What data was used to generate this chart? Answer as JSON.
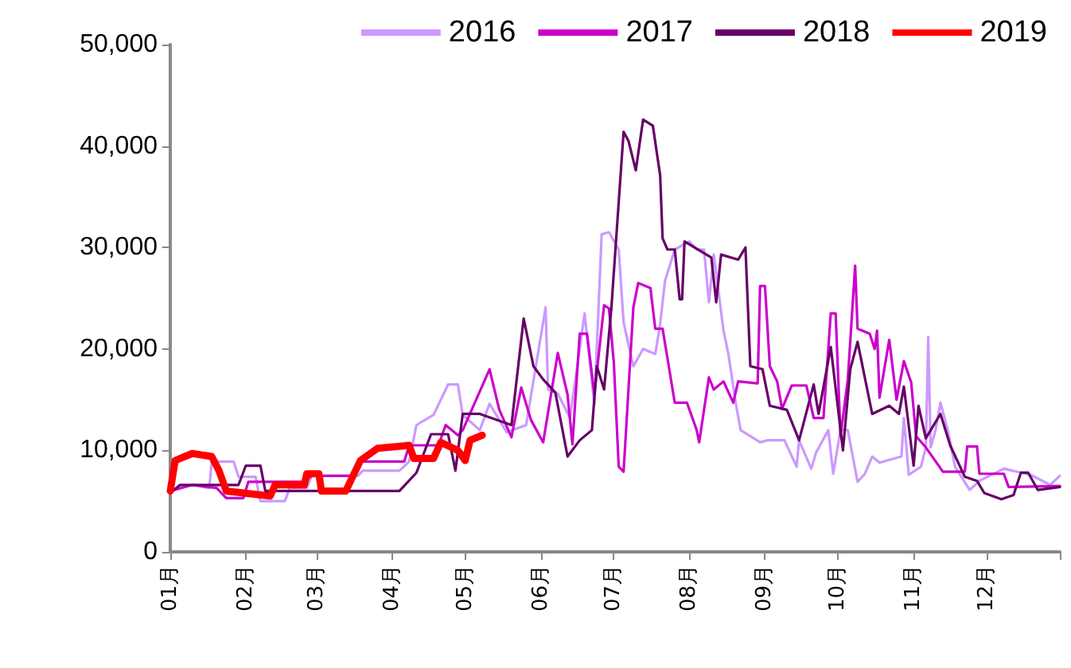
{
  "chart_data": {
    "type": "line",
    "legend": "top",
    "marker": "none",
    "line_style": "solid",
    "grid": false,
    "xlim": [
      "--01-01",
      "--12-31"
    ],
    "xticks": [
      {
        "value": "--01-01",
        "label": "01月"
      },
      {
        "value": "--02-01",
        "label": "02月"
      },
      {
        "value": "--03-01",
        "label": "03月"
      },
      {
        "value": "--04-01",
        "label": "04月"
      },
      {
        "value": "--05-01",
        "label": "05月"
      },
      {
        "value": "--06-01",
        "label": "06月"
      },
      {
        "value": "--07-01",
        "label": "07月"
      },
      {
        "value": "--08-01",
        "label": "08月"
      },
      {
        "value": "--09-01",
        "label": "09月"
      },
      {
        "value": "--10-01",
        "label": "10月"
      },
      {
        "value": "--11-01",
        "label": "11月"
      },
      {
        "value": "--12-01",
        "label": "12月"
      },
      {
        "value": "--12-31",
        "label": null
      }
    ],
    "ylim": [
      0,
      50000
    ],
    "yticks": [
      0,
      {
        "value": 10000,
        "label": "10,000"
      },
      {
        "value": 20000,
        "label": "20,000"
      },
      {
        "value": 30000,
        "label": "30,000"
      },
      {
        "value": 40000,
        "label": "40,000"
      },
      {
        "value": 50000,
        "label": "50,000"
      }
    ],
    "series": [
      {
        "name": "2016",
        "color": "#cc99ff",
        "x": [
          "--01-01",
          "--01-10",
          "--01-17",
          "--01-18",
          "--01-27",
          "--01-29",
          "--02-05",
          "--02-07",
          "--02-17",
          "--02-19",
          "--02-26",
          "--02-28",
          "--03-18",
          "--03-20",
          "--04-04",
          "--04-08",
          "--04-11",
          "--04-18",
          "--04-24",
          "--04-28",
          "--04-30",
          "--05-07",
          "--05-11",
          "--05-18",
          "--05-26",
          "--06-03",
          "--06-04",
          "--06-08",
          "--06-13",
          "--06-19",
          "--06-23",
          "--06-26",
          "--06-29",
          "--07-03",
          "--07-05",
          "--07-09",
          "--07-13",
          "--07-18",
          "--07-20",
          "--07-22",
          "--07-26",
          "--08-01",
          "--08-04",
          "--08-07",
          "--08-09",
          "--08-11",
          "--08-15",
          "--08-17",
          "--08-20",
          "--08-22",
          "--08-30",
          "--09-02",
          "--09-09",
          "--09-14",
          "--09-15",
          "--09-20",
          "--09-22",
          "--09-27",
          "--09-29",
          "--10-02",
          "--10-05",
          "--10-09",
          "--10-12",
          "--10-15",
          "--10-18",
          "--10-27",
          "--10-28",
          "--10-30",
          "--11-04",
          "--11-06",
          "--11-07",
          "--11-08",
          "--11-10",
          "--11-12",
          "--11-15",
          "--11-18",
          "--11-24",
          "--11-28",
          "--12-08",
          "--12-19",
          "--12-27",
          "--12-31"
        ],
        "values": [
          6000,
          6600,
          6300,
          8900,
          8900,
          7400,
          7400,
          5000,
          5000,
          6300,
          6300,
          7500,
          7500,
          8000,
          8000,
          8900,
          12500,
          13500,
          16500,
          16500,
          13500,
          12000,
          14600,
          11800,
          12500,
          24100,
          16000,
          15600,
          13200,
          23500,
          14500,
          31300,
          31500,
          29800,
          22600,
          18300,
          20000,
          19500,
          22500,
          26700,
          29800,
          30600,
          29800,
          29800,
          24600,
          29300,
          21800,
          19500,
          14700,
          12000,
          10800,
          11000,
          11000,
          8400,
          11000,
          8200,
          9800,
          12000,
          7700,
          12000,
          12000,
          6900,
          7700,
          9400,
          8800,
          9400,
          13200,
          7600,
          8400,
          10300,
          21200,
          10300,
          12000,
          14700,
          12000,
          8400,
          6100,
          7000,
          8200,
          7600,
          6600,
          7500
        ]
      },
      {
        "name": "2017",
        "color": "#cc00cc",
        "x": [
          "--01-01",
          "--01-10",
          "--01-20",
          "--01-24",
          "--01-31",
          "--02-02",
          "--02-25",
          "--02-28",
          "--03-16",
          "--03-18",
          "--04-06",
          "--04-08",
          "--04-20",
          "--04-23",
          "--04-28",
          "--04-30",
          "--05-11",
          "--05-15",
          "--05-20",
          "--05-24",
          "--05-28",
          "--06-02",
          "--06-08",
          "--06-12",
          "--06-14",
          "--06-17",
          "--06-20",
          "--06-23",
          "--06-27",
          "--06-29",
          "--07-01",
          "--07-03",
          "--07-05",
          "--07-09",
          "--07-11",
          "--07-16",
          "--07-18",
          "--07-21",
          "--07-26",
          "--07-31",
          "--08-04",
          "--08-05",
          "--08-09",
          "--08-11",
          "--08-15",
          "--08-19",
          "--08-21",
          "--08-29",
          "--08-30",
          "--09-01",
          "--09-03",
          "--09-06",
          "--09-08",
          "--09-12",
          "--09-18",
          "--09-21",
          "--09-25",
          "--09-28",
          "--09-30",
          "--10-02",
          "--10-05",
          "--10-08",
          "--10-09",
          "--10-14",
          "--10-16",
          "--10-17",
          "--10-18",
          "--10-22",
          "--10-25",
          "--10-28",
          "--10-31",
          "--11-02",
          "--11-06",
          "--11-13",
          "--11-22",
          "--11-23",
          "--11-27",
          "--11-28",
          "--12-08",
          "--12-10",
          "--12-31"
        ],
        "values": [
          6000,
          6600,
          6300,
          5300,
          5300,
          6900,
          6900,
          7500,
          7500,
          8900,
          8900,
          10500,
          10500,
          12500,
          11500,
          12000,
          18000,
          14000,
          11300,
          16200,
          13000,
          10800,
          19600,
          15500,
          10600,
          21500,
          21500,
          15500,
          24300,
          24000,
          18600,
          8400,
          7900,
          24100,
          26500,
          26000,
          22000,
          22000,
          14700,
          14700,
          12000,
          10800,
          17200,
          16000,
          16800,
          14700,
          16800,
          16600,
          26200,
          26200,
          18300,
          16800,
          14100,
          16400,
          16400,
          13200,
          13200,
          23500,
          23500,
          11400,
          17000,
          28200,
          22000,
          21500,
          20000,
          21800,
          15200,
          20900,
          15000,
          18800,
          16700,
          11400,
          10300,
          7900,
          7900,
          10400,
          10400,
          7700,
          7700,
          6400,
          6500
        ]
      },
      {
        "name": "2018",
        "color": "#660066",
        "x": [
          "--01-01",
          "--01-05",
          "--01-29",
          "--02-01",
          "--02-07",
          "--02-09",
          "--04-04",
          "--04-11",
          "--04-17",
          "--04-24",
          "--04-27",
          "--04-30",
          "--05-07",
          "--05-20",
          "--05-25",
          "--05-29",
          "--06-02",
          "--06-07",
          "--06-12",
          "--06-17",
          "--06-22",
          "--06-24",
          "--06-27",
          "--06-30",
          "--07-05",
          "--07-07",
          "--07-10",
          "--07-13",
          "--07-17",
          "--07-20",
          "--07-21",
          "--07-23",
          "--07-26",
          "--07-28",
          "--07-29",
          "--07-30",
          "--08-10",
          "--08-12",
          "--08-14",
          "--08-21",
          "--08-24",
          "--08-26",
          "--08-31",
          "--09-03",
          "--09-10",
          "--09-15",
          "--09-21",
          "--09-23",
          "--09-28",
          "--10-03",
          "--10-06",
          "--10-09",
          "--10-15",
          "--10-22",
          "--10-26",
          "--10-28",
          "--11-01",
          "--11-03",
          "--11-06",
          "--11-12",
          "--11-16",
          "--11-22",
          "--11-27",
          "--11-30",
          "--12-07",
          "--12-12",
          "--12-15",
          "--12-18",
          "--12-22",
          "--12-31"
        ],
        "values": [
          5800,
          6600,
          6600,
          8500,
          8500,
          6000,
          6000,
          7800,
          11600,
          11600,
          8000,
          13600,
          13600,
          12500,
          23000,
          18300,
          17000,
          15700,
          9400,
          11000,
          12000,
          18300,
          16000,
          24100,
          41400,
          40500,
          37600,
          42600,
          42000,
          37100,
          30900,
          29800,
          29800,
          24900,
          24900,
          30600,
          29000,
          24600,
          29300,
          28800,
          30000,
          18300,
          18000,
          14400,
          14000,
          11000,
          16500,
          13600,
          20200,
          10000,
          18000,
          20700,
          13600,
          14400,
          13600,
          16300,
          8500,
          14400,
          11200,
          13600,
          10500,
          7400,
          7000,
          5800,
          5200,
          5600,
          7800,
          7800,
          6100,
          6400
        ]
      },
      {
        "name": "2019",
        "color": "#ff0000",
        "x": [
          "--01-01",
          "--01-03",
          "--01-10",
          "--01-18",
          "--01-21",
          "--01-24",
          "--02-11",
          "--02-13",
          "--02-25",
          "--02-26",
          "--03-02",
          "--03-03",
          "--03-13",
          "--03-19",
          "--03-26",
          "--04-08",
          "--04-10",
          "--04-18",
          "--04-21",
          "--04-28",
          "--05-01",
          "--05-03",
          "--05-08"
        ],
        "values": [
          6000,
          9000,
          9700,
          9400,
          8000,
          6000,
          5500,
          6600,
          6600,
          7700,
          7700,
          6000,
          6000,
          9000,
          10200,
          10500,
          9200,
          9200,
          10800,
          10000,
          9000,
          11000,
          11500
        ]
      }
    ]
  }
}
